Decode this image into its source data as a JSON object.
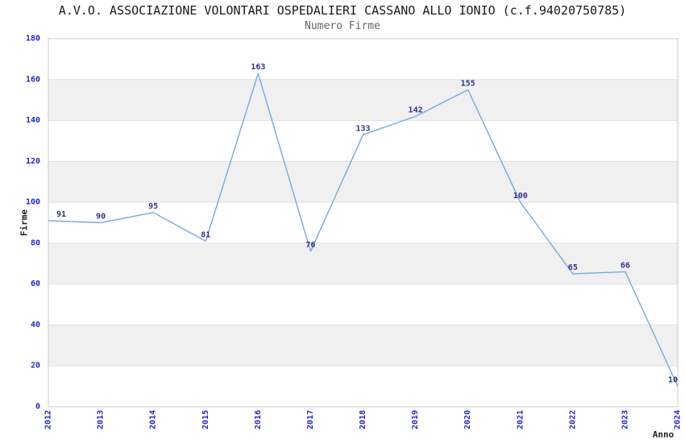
{
  "chart_data": {
    "type": "line",
    "title": "A.V.O. ASSOCIAZIONE VOLONTARI OSPEDALIERI CASSANO ALLO IONIO (c.f.94020750785)",
    "subtitle": "Numero Firme",
    "xlabel": "Anno",
    "ylabel": "Firme",
    "categories": [
      "2012",
      "2013",
      "2014",
      "2015",
      "2016",
      "2017",
      "2018",
      "2019",
      "2020",
      "2021",
      "2022",
      "2023",
      "2024"
    ],
    "series": [
      {
        "name": "Numero Firme",
        "values": [
          91,
          90,
          95,
          81,
          163,
          76,
          133,
          142,
          155,
          100,
          65,
          66,
          10
        ]
      }
    ],
    "ylim": [
      0,
      180
    ],
    "ytick_step": 20,
    "grid": "horizontal-gridlines-with-alternating-bands",
    "legend": "none",
    "colors": {
      "line": "#74AAE2",
      "band_gray": "#F0F0F0",
      "gridline": "#E0E0E0",
      "plot_border": "#C8C8C8",
      "tick_label": "#2424D0",
      "data_label": "#31318C",
      "title_text": "#1A1A1A",
      "subtitle_text": "#666666",
      "axis_title_text": "#222222"
    }
  }
}
